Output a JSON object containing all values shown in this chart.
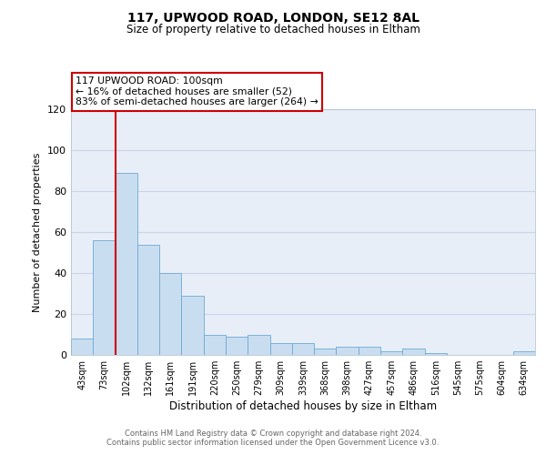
{
  "title": "117, UPWOOD ROAD, LONDON, SE12 8AL",
  "subtitle": "Size of property relative to detached houses in Eltham",
  "xlabel": "Distribution of detached houses by size in Eltham",
  "ylabel": "Number of detached properties",
  "bar_labels": [
    "43sqm",
    "73sqm",
    "102sqm",
    "132sqm",
    "161sqm",
    "191sqm",
    "220sqm",
    "250sqm",
    "279sqm",
    "309sqm",
    "339sqm",
    "368sqm",
    "398sqm",
    "427sqm",
    "457sqm",
    "486sqm",
    "516sqm",
    "545sqm",
    "575sqm",
    "604sqm",
    "634sqm"
  ],
  "bar_values": [
    8,
    56,
    89,
    54,
    40,
    29,
    10,
    9,
    10,
    6,
    6,
    3,
    4,
    4,
    2,
    3,
    1,
    0,
    0,
    0,
    2
  ],
  "bar_color": "#c9ddf0",
  "bar_edge_color": "#6aaad4",
  "vline_color": "#cc0000",
  "annotation_title": "117 UPWOOD ROAD: 100sqm",
  "annotation_line1": "← 16% of detached houses are smaller (52)",
  "annotation_line2": "83% of semi-detached houses are larger (264) →",
  "annotation_box_facecolor": "#ffffff",
  "annotation_box_edgecolor": "#cc0000",
  "ylim": [
    0,
    120
  ],
  "yticks": [
    0,
    20,
    40,
    60,
    80,
    100,
    120
  ],
  "plot_bg_color": "#e8eef8",
  "fig_bg_color": "#ffffff",
  "grid_color": "#c8d4e8",
  "footer_line1": "Contains HM Land Registry data © Crown copyright and database right 2024.",
  "footer_line2": "Contains public sector information licensed under the Open Government Licence v3.0."
}
